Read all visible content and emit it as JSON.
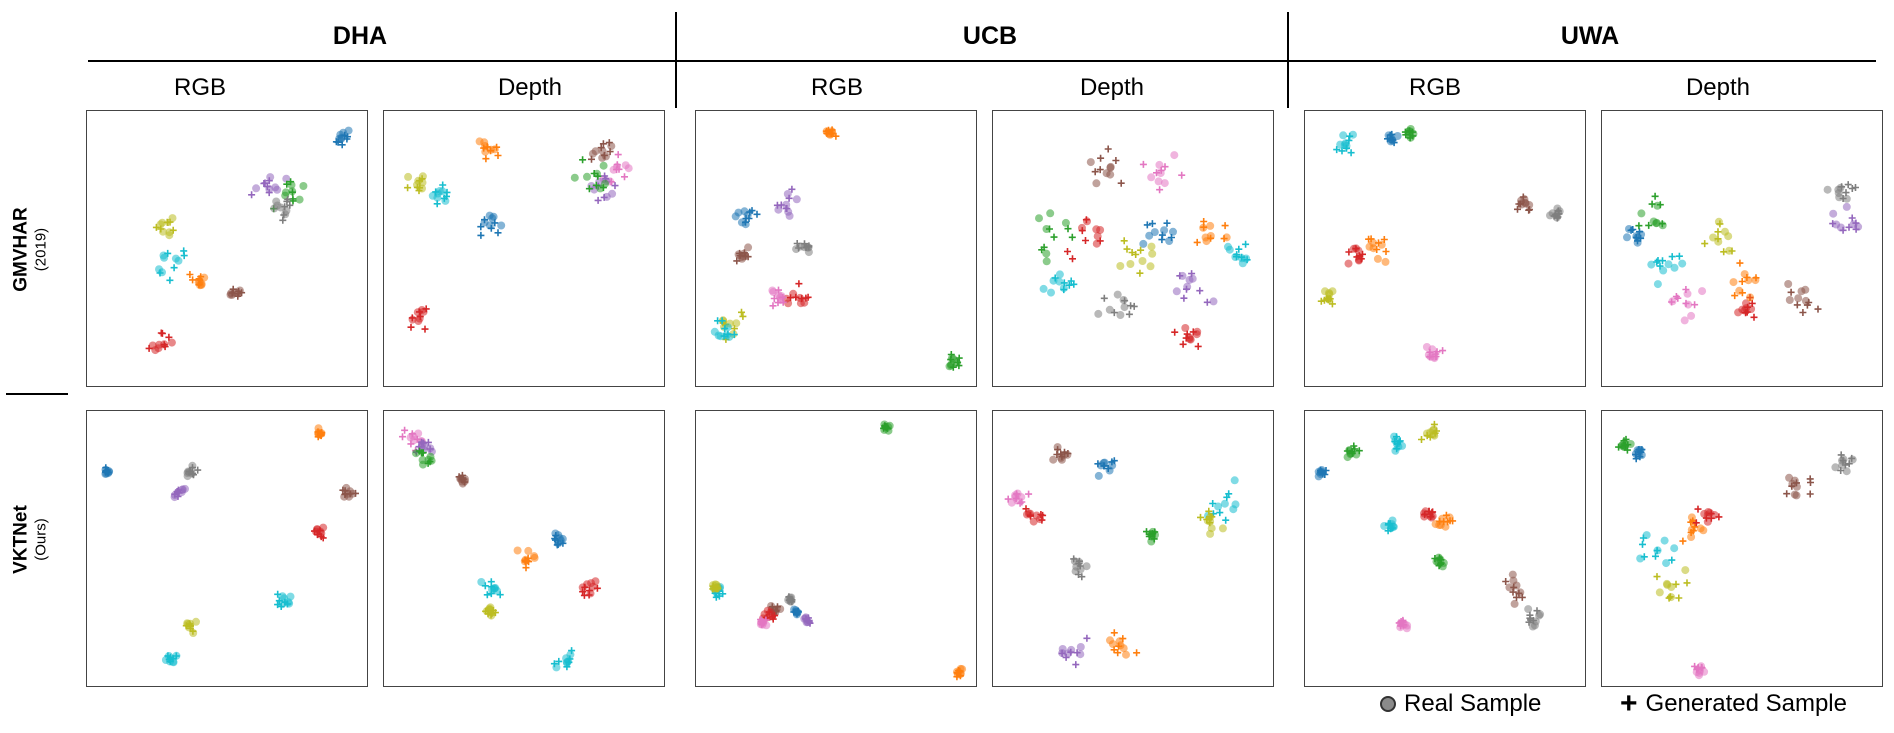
{
  "chart_data": {
    "type": "scatter",
    "datasets": [
      {
        "key": "dha",
        "label": "DHA"
      },
      {
        "key": "ucb",
        "label": "UCB"
      },
      {
        "key": "uwa",
        "label": "UWA"
      }
    ],
    "modalities": [
      "RGB",
      "Depth"
    ],
    "rows": [
      {
        "key": "gmvhar",
        "label": "GMVHAR",
        "sublabel": "(2019)"
      },
      {
        "key": "vktnet",
        "label": "VKTNet",
        "sublabel": "(Ours)"
      }
    ],
    "legend": {
      "real": "Real Sample",
      "generated": "Generated Sample"
    },
    "palette": [
      "#1f77b4",
      "#ff7f0e",
      "#2ca02c",
      "#d62728",
      "#9467bd",
      "#8c564b",
      "#e377c2",
      "#7f7f7f",
      "#bcbd22",
      "#17becf"
    ],
    "panels": [
      {
        "row": "gmvhar",
        "dataset": "dha",
        "modality": "RGB",
        "clusters": [
          {
            "c": 0,
            "x": 0.91,
            "y": 0.9,
            "s": 0.03
          },
          {
            "c": 4,
            "x": 0.65,
            "y": 0.73,
            "s": 0.05
          },
          {
            "c": 2,
            "x": 0.72,
            "y": 0.7,
            "s": 0.04
          },
          {
            "c": 7,
            "x": 0.7,
            "y": 0.64,
            "s": 0.03
          },
          {
            "c": 8,
            "x": 0.28,
            "y": 0.58,
            "s": 0.04
          },
          {
            "c": 9,
            "x": 0.3,
            "y": 0.45,
            "s": 0.05
          },
          {
            "c": 1,
            "x": 0.39,
            "y": 0.38,
            "s": 0.03
          },
          {
            "c": 5,
            "x": 0.53,
            "y": 0.34,
            "s": 0.02
          },
          {
            "c": 3,
            "x": 0.27,
            "y": 0.15,
            "s": 0.04
          }
        ]
      },
      {
        "row": "gmvhar",
        "dataset": "dha",
        "modality": "Depth",
        "clusters": [
          {
            "c": 5,
            "x": 0.78,
            "y": 0.86,
            "s": 0.04
          },
          {
            "c": 6,
            "x": 0.83,
            "y": 0.78,
            "s": 0.05
          },
          {
            "c": 4,
            "x": 0.8,
            "y": 0.72,
            "s": 0.05
          },
          {
            "c": 2,
            "x": 0.75,
            "y": 0.76,
            "s": 0.05
          },
          {
            "c": 1,
            "x": 0.37,
            "y": 0.86,
            "s": 0.03
          },
          {
            "c": 8,
            "x": 0.12,
            "y": 0.73,
            "s": 0.04
          },
          {
            "c": 9,
            "x": 0.2,
            "y": 0.7,
            "s": 0.03
          },
          {
            "c": 0,
            "x": 0.38,
            "y": 0.58,
            "s": 0.04
          },
          {
            "c": 3,
            "x": 0.12,
            "y": 0.25,
            "s": 0.05
          }
        ]
      },
      {
        "row": "gmvhar",
        "dataset": "ucb",
        "modality": "RGB",
        "clusters": [
          {
            "c": 1,
            "x": 0.48,
            "y": 0.92,
            "s": 0.02
          },
          {
            "c": 0,
            "x": 0.18,
            "y": 0.62,
            "s": 0.03
          },
          {
            "c": 4,
            "x": 0.33,
            "y": 0.66,
            "s": 0.04
          },
          {
            "c": 5,
            "x": 0.17,
            "y": 0.47,
            "s": 0.03
          },
          {
            "c": 7,
            "x": 0.38,
            "y": 0.5,
            "s": 0.03
          },
          {
            "c": 3,
            "x": 0.35,
            "y": 0.32,
            "s": 0.04
          },
          {
            "c": 6,
            "x": 0.29,
            "y": 0.32,
            "s": 0.03
          },
          {
            "c": 8,
            "x": 0.12,
            "y": 0.22,
            "s": 0.05
          },
          {
            "c": 9,
            "x": 0.1,
            "y": 0.2,
            "s": 0.04
          },
          {
            "c": 2,
            "x": 0.92,
            "y": 0.09,
            "s": 0.02
          }
        ]
      },
      {
        "row": "gmvhar",
        "dataset": "ucb",
        "modality": "Depth",
        "clusters": [
          {
            "c": 5,
            "x": 0.4,
            "y": 0.8,
            "s": 0.06
          },
          {
            "c": 6,
            "x": 0.6,
            "y": 0.78,
            "s": 0.06
          },
          {
            "c": 3,
            "x": 0.35,
            "y": 0.55,
            "s": 0.08
          },
          {
            "c": 0,
            "x": 0.62,
            "y": 0.55,
            "s": 0.08
          },
          {
            "c": 2,
            "x": 0.2,
            "y": 0.52,
            "s": 0.08
          },
          {
            "c": 8,
            "x": 0.5,
            "y": 0.45,
            "s": 0.08
          },
          {
            "c": 9,
            "x": 0.25,
            "y": 0.38,
            "s": 0.06
          },
          {
            "c": 1,
            "x": 0.8,
            "y": 0.55,
            "s": 0.06
          },
          {
            "c": 4,
            "x": 0.7,
            "y": 0.35,
            "s": 0.06
          },
          {
            "c": 7,
            "x": 0.45,
            "y": 0.3,
            "s": 0.06
          },
          {
            "c": 3,
            "x": 0.7,
            "y": 0.18,
            "s": 0.05
          },
          {
            "c": 9,
            "x": 0.88,
            "y": 0.48,
            "s": 0.04
          }
        ]
      },
      {
        "row": "gmvhar",
        "dataset": "uwa",
        "modality": "RGB",
        "clusters": [
          {
            "c": 9,
            "x": 0.15,
            "y": 0.88,
            "s": 0.03
          },
          {
            "c": 0,
            "x": 0.31,
            "y": 0.9,
            "s": 0.02
          },
          {
            "c": 2,
            "x": 0.38,
            "y": 0.92,
            "s": 0.02
          },
          {
            "c": 5,
            "x": 0.78,
            "y": 0.66,
            "s": 0.03
          },
          {
            "c": 7,
            "x": 0.9,
            "y": 0.63,
            "s": 0.02
          },
          {
            "c": 1,
            "x": 0.25,
            "y": 0.5,
            "s": 0.04
          },
          {
            "c": 3,
            "x": 0.18,
            "y": 0.48,
            "s": 0.03
          },
          {
            "c": 8,
            "x": 0.08,
            "y": 0.32,
            "s": 0.02
          },
          {
            "c": 6,
            "x": 0.45,
            "y": 0.12,
            "s": 0.03
          }
        ]
      },
      {
        "row": "gmvhar",
        "dataset": "uwa",
        "modality": "Depth",
        "clusters": [
          {
            "c": 0,
            "x": 0.12,
            "y": 0.55,
            "s": 0.03
          },
          {
            "c": 2,
            "x": 0.18,
            "y": 0.62,
            "s": 0.05
          },
          {
            "c": 8,
            "x": 0.42,
            "y": 0.55,
            "s": 0.08
          },
          {
            "c": 3,
            "x": 0.52,
            "y": 0.28,
            "s": 0.04
          },
          {
            "c": 4,
            "x": 0.88,
            "y": 0.6,
            "s": 0.05
          },
          {
            "c": 7,
            "x": 0.85,
            "y": 0.7,
            "s": 0.05
          },
          {
            "c": 6,
            "x": 0.3,
            "y": 0.3,
            "s": 0.07
          },
          {
            "c": 9,
            "x": 0.25,
            "y": 0.45,
            "s": 0.07
          },
          {
            "c": 1,
            "x": 0.5,
            "y": 0.38,
            "s": 0.06
          },
          {
            "c": 5,
            "x": 0.7,
            "y": 0.3,
            "s": 0.08
          }
        ]
      },
      {
        "row": "vktnet",
        "dataset": "dha",
        "modality": "RGB",
        "clusters": [
          {
            "c": 0,
            "x": 0.07,
            "y": 0.78,
            "s": 0.01
          },
          {
            "c": 7,
            "x": 0.37,
            "y": 0.78,
            "s": 0.02
          },
          {
            "c": 4,
            "x": 0.33,
            "y": 0.7,
            "s": 0.02
          },
          {
            "c": 1,
            "x": 0.83,
            "y": 0.92,
            "s": 0.01
          },
          {
            "c": 5,
            "x": 0.93,
            "y": 0.7,
            "s": 0.02
          },
          {
            "c": 3,
            "x": 0.83,
            "y": 0.56,
            "s": 0.02
          },
          {
            "c": 9,
            "x": 0.7,
            "y": 0.31,
            "s": 0.03
          },
          {
            "c": 8,
            "x": 0.37,
            "y": 0.22,
            "s": 0.02
          },
          {
            "c": 9,
            "x": 0.3,
            "y": 0.1,
            "s": 0.02
          }
        ]
      },
      {
        "row": "vktnet",
        "dataset": "dha",
        "modality": "Depth",
        "clusters": [
          {
            "c": 6,
            "x": 0.1,
            "y": 0.9,
            "s": 0.03
          },
          {
            "c": 4,
            "x": 0.15,
            "y": 0.87,
            "s": 0.03
          },
          {
            "c": 2,
            "x": 0.15,
            "y": 0.83,
            "s": 0.03
          },
          {
            "c": 5,
            "x": 0.28,
            "y": 0.75,
            "s": 0.02
          },
          {
            "c": 1,
            "x": 0.5,
            "y": 0.46,
            "s": 0.03
          },
          {
            "c": 0,
            "x": 0.62,
            "y": 0.53,
            "s": 0.02
          },
          {
            "c": 9,
            "x": 0.38,
            "y": 0.35,
            "s": 0.03
          },
          {
            "c": 8,
            "x": 0.38,
            "y": 0.27,
            "s": 0.02
          },
          {
            "c": 3,
            "x": 0.73,
            "y": 0.36,
            "s": 0.03
          },
          {
            "c": 9,
            "x": 0.65,
            "y": 0.1,
            "s": 0.03
          }
        ]
      },
      {
        "row": "vktnet",
        "dataset": "ucb",
        "modality": "RGB",
        "clusters": [
          {
            "c": 2,
            "x": 0.68,
            "y": 0.94,
            "s": 0.01
          },
          {
            "c": 9,
            "x": 0.08,
            "y": 0.34,
            "s": 0.02
          },
          {
            "c": 8,
            "x": 0.07,
            "y": 0.36,
            "s": 0.01
          },
          {
            "c": 5,
            "x": 0.28,
            "y": 0.28,
            "s": 0.02
          },
          {
            "c": 3,
            "x": 0.26,
            "y": 0.25,
            "s": 0.02
          },
          {
            "c": 6,
            "x": 0.24,
            "y": 0.23,
            "s": 0.01
          },
          {
            "c": 0,
            "x": 0.36,
            "y": 0.27,
            "s": 0.01
          },
          {
            "c": 7,
            "x": 0.34,
            "y": 0.31,
            "s": 0.01
          },
          {
            "c": 4,
            "x": 0.4,
            "y": 0.24,
            "s": 0.01
          },
          {
            "c": 1,
            "x": 0.94,
            "y": 0.05,
            "s": 0.01
          }
        ]
      },
      {
        "row": "vktnet",
        "dataset": "ucb",
        "modality": "Depth",
        "clusters": [
          {
            "c": 5,
            "x": 0.25,
            "y": 0.84,
            "s": 0.03
          },
          {
            "c": 0,
            "x": 0.4,
            "y": 0.8,
            "s": 0.03
          },
          {
            "c": 6,
            "x": 0.08,
            "y": 0.68,
            "s": 0.04
          },
          {
            "c": 3,
            "x": 0.15,
            "y": 0.62,
            "s": 0.03
          },
          {
            "c": 7,
            "x": 0.3,
            "y": 0.45,
            "s": 0.04
          },
          {
            "c": 2,
            "x": 0.57,
            "y": 0.55,
            "s": 0.02
          },
          {
            "c": 9,
            "x": 0.83,
            "y": 0.66,
            "s": 0.07
          },
          {
            "c": 8,
            "x": 0.78,
            "y": 0.6,
            "s": 0.04
          },
          {
            "c": 4,
            "x": 0.28,
            "y": 0.12,
            "s": 0.05
          },
          {
            "c": 1,
            "x": 0.45,
            "y": 0.15,
            "s": 0.05
          }
        ]
      },
      {
        "row": "vktnet",
        "dataset": "uwa",
        "modality": "RGB",
        "clusters": [
          {
            "c": 0,
            "x": 0.06,
            "y": 0.78,
            "s": 0.02
          },
          {
            "c": 2,
            "x": 0.17,
            "y": 0.85,
            "s": 0.02
          },
          {
            "c": 9,
            "x": 0.33,
            "y": 0.88,
            "s": 0.03
          },
          {
            "c": 8,
            "x": 0.45,
            "y": 0.92,
            "s": 0.03
          },
          {
            "c": 1,
            "x": 0.5,
            "y": 0.6,
            "s": 0.03
          },
          {
            "c": 3,
            "x": 0.44,
            "y": 0.62,
            "s": 0.02
          },
          {
            "c": 9,
            "x": 0.3,
            "y": 0.58,
            "s": 0.02
          },
          {
            "c": 2,
            "x": 0.48,
            "y": 0.45,
            "s": 0.02
          },
          {
            "c": 5,
            "x": 0.75,
            "y": 0.35,
            "s": 0.04
          },
          {
            "c": 7,
            "x": 0.82,
            "y": 0.25,
            "s": 0.03
          },
          {
            "c": 6,
            "x": 0.35,
            "y": 0.22,
            "s": 0.02
          }
        ]
      },
      {
        "row": "vktnet",
        "dataset": "uwa",
        "modality": "Depth",
        "clusters": [
          {
            "c": 2,
            "x": 0.08,
            "y": 0.88,
            "s": 0.02
          },
          {
            "c": 0,
            "x": 0.13,
            "y": 0.85,
            "s": 0.02
          },
          {
            "c": 7,
            "x": 0.88,
            "y": 0.82,
            "s": 0.05
          },
          {
            "c": 5,
            "x": 0.7,
            "y": 0.72,
            "s": 0.05
          },
          {
            "c": 1,
            "x": 0.33,
            "y": 0.58,
            "s": 0.05
          },
          {
            "c": 3,
            "x": 0.38,
            "y": 0.62,
            "s": 0.03
          },
          {
            "c": 9,
            "x": 0.2,
            "y": 0.5,
            "s": 0.06
          },
          {
            "c": 8,
            "x": 0.25,
            "y": 0.35,
            "s": 0.06
          },
          {
            "c": 6,
            "x": 0.35,
            "y": 0.06,
            "s": 0.02
          }
        ]
      }
    ]
  }
}
